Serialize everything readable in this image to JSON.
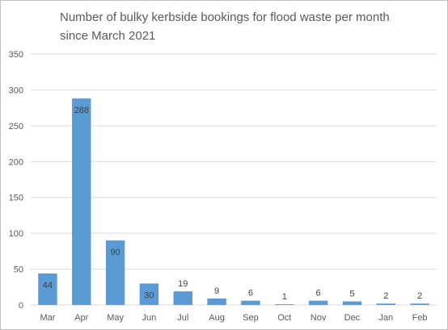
{
  "chart_data": {
    "type": "bar",
    "title_lines": [
      "Number of bulky kerbside bookings for flood waste per month",
      "since March 2021"
    ],
    "categories": [
      "Mar",
      "Apr",
      "May",
      "Jun",
      "Jul",
      "Aug",
      "Sep",
      "Oct",
      "Nov",
      "Dec",
      "Jan",
      "Feb"
    ],
    "values": [
      44,
      288,
      90,
      30,
      19,
      9,
      6,
      1,
      6,
      5,
      2,
      2
    ],
    "data_labels": [
      "44",
      "288",
      "90",
      "30",
      "19",
      "9",
      "6",
      "1",
      "6",
      "5",
      "2",
      "2"
    ],
    "ylim": [
      0,
      350
    ],
    "yticks": [
      0,
      50,
      100,
      150,
      200,
      250,
      300,
      350
    ],
    "grid": true,
    "legend": "none",
    "bar_color": "#5b9bd5",
    "grid_color": "#d9d9d9",
    "text_color": "#595959",
    "label_color": "#404040"
  }
}
